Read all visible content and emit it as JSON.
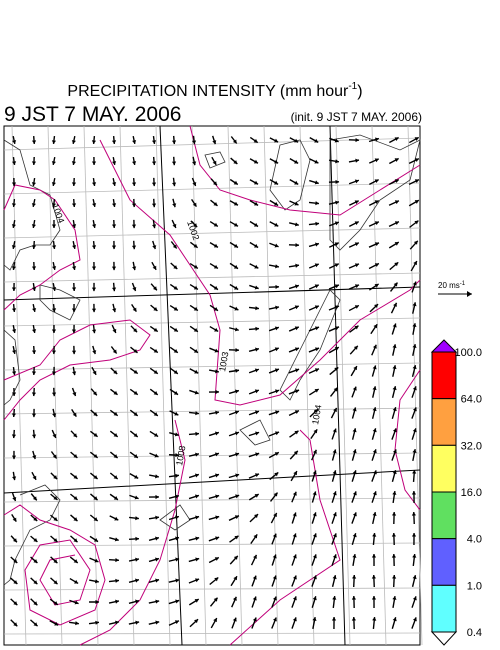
{
  "header": {
    "title": "PRECIPITATION INTENSITY (mm hour",
    "title_sup": "-1",
    "title_end": ")",
    "valid_time": "9 JST 7 MAY. 2006",
    "init_time": "(init. 9 JST 7 MAY. 2006)"
  },
  "wind_scale": {
    "label": "20 ms",
    "label_sup": "-1"
  },
  "contour_labels": [
    "1004",
    "1002",
    "1003",
    "1004",
    "1008"
  ],
  "legend": {
    "labels": [
      "100.0",
      "64.0",
      "32.0",
      "16.0",
      "4.0",
      "1.0",
      "0.4"
    ],
    "colors": [
      "#a000ff",
      "#ff0000",
      "#ffa040",
      "#ffff60",
      "#60e060",
      "#6060ff",
      "#60ffff",
      "#ffffff"
    ]
  }
}
